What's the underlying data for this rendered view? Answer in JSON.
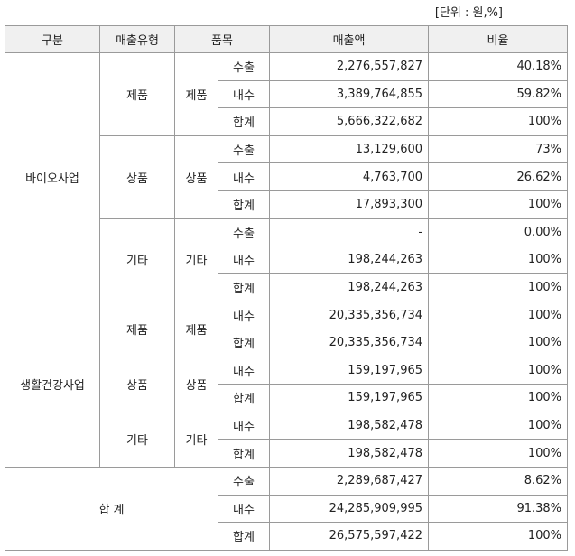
{
  "unit": "[단위 : 원,%]",
  "header": [
    "구분",
    "매출유형",
    "품목",
    "매출액",
    "비율"
  ],
  "sections": [
    {
      "name": "바이오사업",
      "groups": [
        {
          "type": "제품",
          "item": "제품",
          "rows": [
            [
              "수출",
              "2,276,557,827",
              "40.18%"
            ],
            [
              "내수",
              "3,389,764,855",
              "59.82%"
            ],
            [
              "합계",
              "5,666,322,682",
              "100%"
            ]
          ]
        },
        {
          "type": "상품",
          "item": "상품",
          "rows": [
            [
              "수출",
              "13,129,600",
              "73%"
            ],
            [
              "내수",
              "4,763,700",
              "26.62%"
            ],
            [
              "합계",
              "17,893,300",
              "100%"
            ]
          ]
        },
        {
          "type": "기타",
          "item": "기타",
          "rows": [
            [
              "수출",
              "-",
              "0.00%"
            ],
            [
              "내수",
              "198,244,263",
              "100%"
            ],
            [
              "합계",
              "198,244,263",
              "100%"
            ]
          ]
        }
      ]
    },
    {
      "name": "생활건강사업",
      "groups": [
        {
          "type": "제품",
          "item": "제품",
          "rows": [
            [
              "내수",
              "20,335,356,734",
              "100%"
            ],
            [
              "합계",
              "20,335,356,734",
              "100%"
            ]
          ]
        },
        {
          "type": "상품",
          "item": "상품",
          "rows": [
            [
              "내수",
              "159,197,965",
              "100%"
            ],
            [
              "합계",
              "159,197,965",
              "100%"
            ]
          ]
        },
        {
          "type": "기타",
          "item": "기타",
          "rows": [
            [
              "내수",
              "198,582,478",
              "100%"
            ],
            [
              "합계",
              "198,582,478",
              "100%"
            ]
          ]
        }
      ]
    }
  ],
  "total": {
    "label": "합 계",
    "rows": [
      [
        "수출",
        "2,289,687,427",
        "8.62%"
      ],
      [
        "내수",
        "24,285,909,995",
        "91.38%"
      ],
      [
        "합계",
        "26,575,597,422",
        "100%"
      ]
    ]
  }
}
